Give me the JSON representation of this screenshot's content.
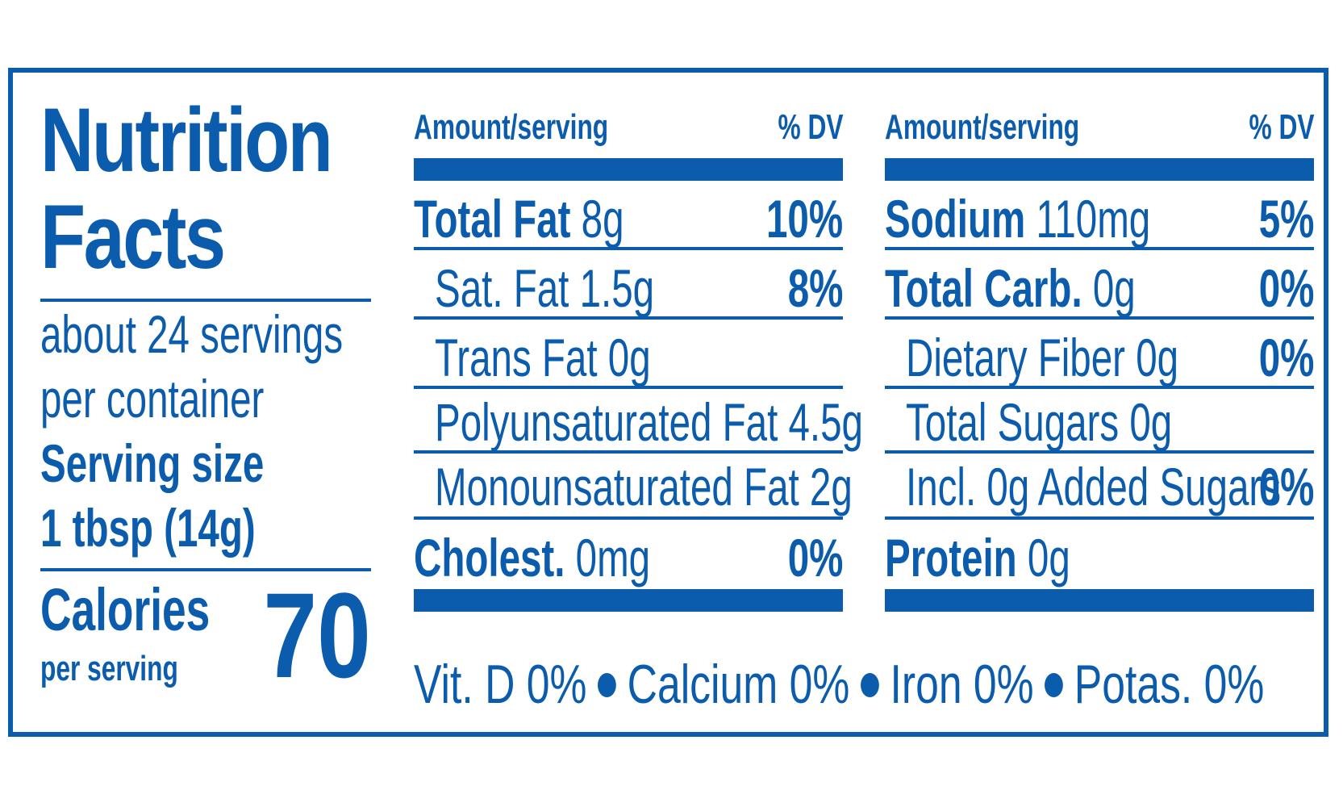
{
  "colors": {
    "ink": "#0b5cad",
    "background": "#ffffff"
  },
  "title": [
    "Nutrition",
    "Facts"
  ],
  "servings": [
    "about 24 servings",
    "per container"
  ],
  "serving_size": [
    "Serving size",
    "1 tbsp (14g)"
  ],
  "calories": {
    "label": "Calories",
    "sub": "per serving",
    "value": "70"
  },
  "left_column": {
    "header_amount": "Amount/serving",
    "header_dv": "% DV",
    "rows": [
      {
        "bold": "Total Fat",
        "amount": " 8g",
        "dv": "10%"
      },
      {
        "bold": "",
        "amount": "Sat. Fat 1.5g",
        "dv": "8%"
      },
      {
        "bold": "",
        "amount": "Trans Fat 0g",
        "dv": ""
      },
      {
        "bold": "",
        "amount": "Polyunsaturated Fat 4.5g",
        "dv": ""
      },
      {
        "bold": "",
        "amount": "Monounsaturated Fat 2g",
        "dv": ""
      },
      {
        "bold": "Cholest.",
        "amount": " 0mg",
        "dv": "0%"
      }
    ]
  },
  "right_column": {
    "header_amount": "Amount/serving",
    "header_dv": "% DV",
    "rows": [
      {
        "bold": "Sodium",
        "amount": " 110mg",
        "dv": "5%"
      },
      {
        "bold": "Total Carb.",
        "amount": " 0g",
        "dv": "0%"
      },
      {
        "bold": "",
        "amount": "Dietary Fiber 0g",
        "dv": "0%"
      },
      {
        "bold": "",
        "amount": "Total Sugars 0g",
        "dv": ""
      },
      {
        "bold": "",
        "amount": "Incl. 0g Added Sugars",
        "dv": "0%"
      },
      {
        "bold": "Protein",
        "amount": " 0g",
        "dv": ""
      }
    ]
  },
  "vitamins": [
    "Vit. D 0%",
    "Calcium 0%",
    "Iron 0%",
    "Potas. 0%"
  ]
}
